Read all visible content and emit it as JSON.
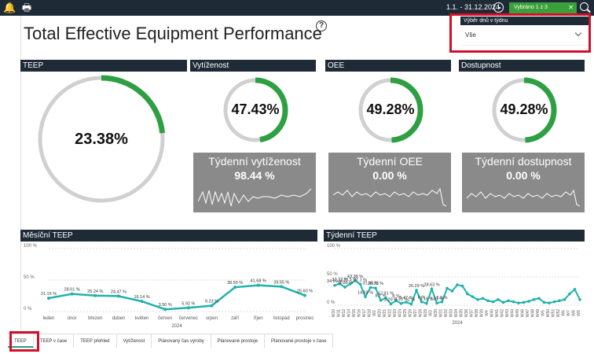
{
  "topbar": {
    "date_range": "1.1. - 31.12.2024",
    "selected_label": "Vybráno 1 z 3",
    "clear_glyph": "✕"
  },
  "page": {
    "title": "Total Effective Equipment Performance",
    "help_glyph": "?"
  },
  "slicer": {
    "header": "Výběr dnů v týdnu",
    "value": "Vše"
  },
  "cards": {
    "teep": {
      "header": "TEEP",
      "value": "23.38%",
      "fraction": 0.2338
    },
    "vytizenost": {
      "header": "Vytíženost",
      "value": "47.43%",
      "fraction": 0.4743
    },
    "oee": {
      "header": "OEE",
      "value": "49.28%",
      "fraction": 0.4928
    },
    "dostupnost": {
      "header": "Dostupnost",
      "value": "49.28%",
      "fraction": 0.4928
    }
  },
  "weekly_boxes": {
    "vytizenost": {
      "label": "Týdenní vytíženost",
      "value": "98.44 %"
    },
    "oee": {
      "label": "Týdenní OEE",
      "value": "0.00 %"
    },
    "dostupnost": {
      "label": "Týdenní dostupnost",
      "value": "0.00 %"
    }
  },
  "chart_data": [
    {
      "type": "line",
      "title": "Měsíční TEEP",
      "xlabel": "2024",
      "ylabel": "",
      "ylim": [
        0,
        100
      ],
      "y_ticks": [
        "100 %",
        "50 %",
        "0 %"
      ],
      "categories": [
        "leden",
        "únor",
        "březen",
        "duben",
        "květen",
        "červen",
        "červenec",
        "srpen",
        "září",
        "říjen",
        "listopad",
        "prosinec"
      ],
      "values": [
        21.15,
        28.01,
        25.24,
        24.47,
        16.14,
        3.5,
        5.92,
        9.23,
        38.55,
        41.68,
        39.55,
        25.6
      ],
      "labels": [
        "21.15 %",
        "28.01 %",
        "25.24 %",
        "24.47 %",
        "16.14 %",
        "3.50 %",
        "5.92 %",
        "9.23 %",
        "38.55 %",
        "41.68 %",
        "39.55 %",
        "25.60 %"
      ],
      "color": "#20b2aa"
    },
    {
      "type": "line",
      "title": "Týdenní TEEP",
      "xlabel": "2024",
      "ylim": [
        0,
        100
      ],
      "y_ticks": [
        "100 %",
        "50 %",
        "0 %"
      ],
      "categories": [
        "W10",
        "W11",
        "W12",
        "W14",
        "W15",
        "W16",
        "W17",
        "W18",
        "W2",
        "W20",
        "W21",
        "W22",
        "W23",
        "W24",
        "W25",
        "W26",
        "W27",
        "W28",
        "W29",
        "W3",
        "W30",
        "W31",
        "W32",
        "W33",
        "W34",
        "W35",
        "W36",
        "W37",
        "W38",
        "W39",
        "W4",
        "W40",
        "W41",
        "W42",
        "W43",
        "W44",
        "W45",
        "W46",
        "W47",
        "W48",
        "W49",
        "W5",
        "W50",
        "W51",
        "W52",
        "W6",
        "W7",
        "W8",
        "W9"
      ],
      "values": [
        34.99,
        37.73,
        31.88,
        37.5,
        43.38,
        37.1,
        14.93,
        31.36,
        30.32,
        8.7,
        12.91,
        2.29,
        8.0,
        3.1,
        5.47,
        2.0,
        26.29,
        6.0,
        3.16,
        28.63,
        3.81,
        5.9,
        30,
        25,
        36,
        34,
        20,
        15,
        10,
        12,
        8,
        6,
        10,
        5,
        8,
        6,
        4,
        5,
        7,
        10,
        12,
        5,
        4,
        6,
        8,
        10,
        20,
        28,
        10
      ],
      "labels": [
        "34.99 %",
        "37.73 %",
        "31.88 %",
        "37.5 %",
        "43.38 %",
        "37.1 %",
        "14.93 %",
        "31.36 %",
        "30.32 %",
        "8.7 %",
        "12.91 %",
        "2.29 %",
        "8 %",
        "3.10 %",
        "5.47 %",
        "2 %",
        "26.29 %",
        "6 %",
        "3.16 %",
        "28.63 %",
        "3.81 %",
        "5.9 %"
      ],
      "color": "#20b2aa"
    }
  ],
  "tabs": [
    {
      "label": "TEEP",
      "active": true
    },
    {
      "label": "TEEP v čase"
    },
    {
      "label": "TEEP přehled"
    },
    {
      "label": "Vytíženost"
    },
    {
      "label": "Plánovaný čas výroby"
    },
    {
      "label": "Plánované prostoje"
    },
    {
      "label": "Plánované prostoje v čase"
    }
  ]
}
